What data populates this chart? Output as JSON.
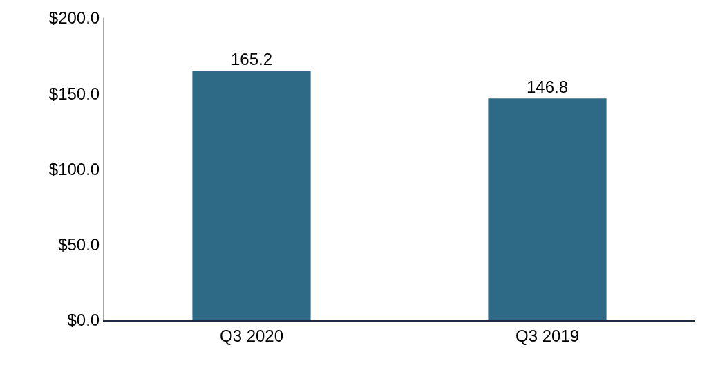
{
  "chart_data": {
    "type": "bar",
    "categories": [
      "Q3 2020",
      "Q3 2019"
    ],
    "values": [
      165.2,
      146.8
    ],
    "color": "#2e6a85",
    "ylim": [
      0,
      200
    ],
    "yticks": [
      {
        "value": 0,
        "label": "$0.0"
      },
      {
        "value": 50,
        "label": "$50.0"
      },
      {
        "value": 100,
        "label": "$100.0"
      },
      {
        "value": 150,
        "label": "$150.0"
      },
      {
        "value": 200,
        "label": "$200.0"
      }
    ],
    "data_labels": true,
    "legend": false
  }
}
